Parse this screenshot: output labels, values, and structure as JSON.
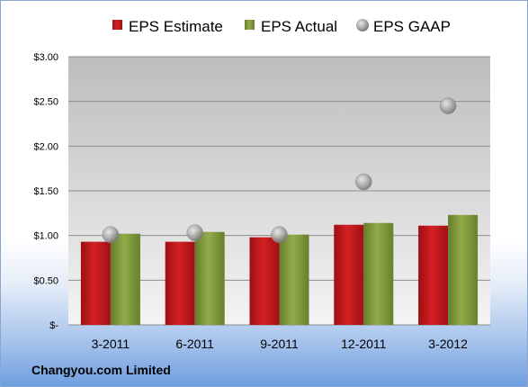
{
  "company": "Changyou.com Limited",
  "colors": {
    "estimate": "#c0161a",
    "actual": "#7f9a3a",
    "gaap": "#a8a8a8"
  },
  "chart_data": {
    "type": "bar",
    "categories": [
      "3-2011",
      "6-2011",
      "9-2011",
      "12-2011",
      "3-2012"
    ],
    "series": [
      {
        "name": "EPS Estimate",
        "type": "bar",
        "values": [
          0.93,
          0.93,
          0.98,
          1.12,
          1.11
        ]
      },
      {
        "name": "EPS Actual",
        "type": "bar",
        "values": [
          1.02,
          1.04,
          1.01,
          1.14,
          1.23
        ]
      },
      {
        "name": "EPS GAAP",
        "type": "scatter",
        "values": [
          1.01,
          1.03,
          1.01,
          1.6,
          2.45
        ]
      }
    ],
    "ylim": [
      0,
      3.0
    ],
    "yticks": [
      0,
      0.5,
      1.0,
      1.5,
      2.0,
      2.5,
      3.0
    ],
    "ytick_labels": [
      "$-",
      "$0.50",
      "$1.00",
      "$1.50",
      "$2.00",
      "$2.50",
      "$3.00"
    ],
    "grid": true,
    "legend_position": "top"
  }
}
